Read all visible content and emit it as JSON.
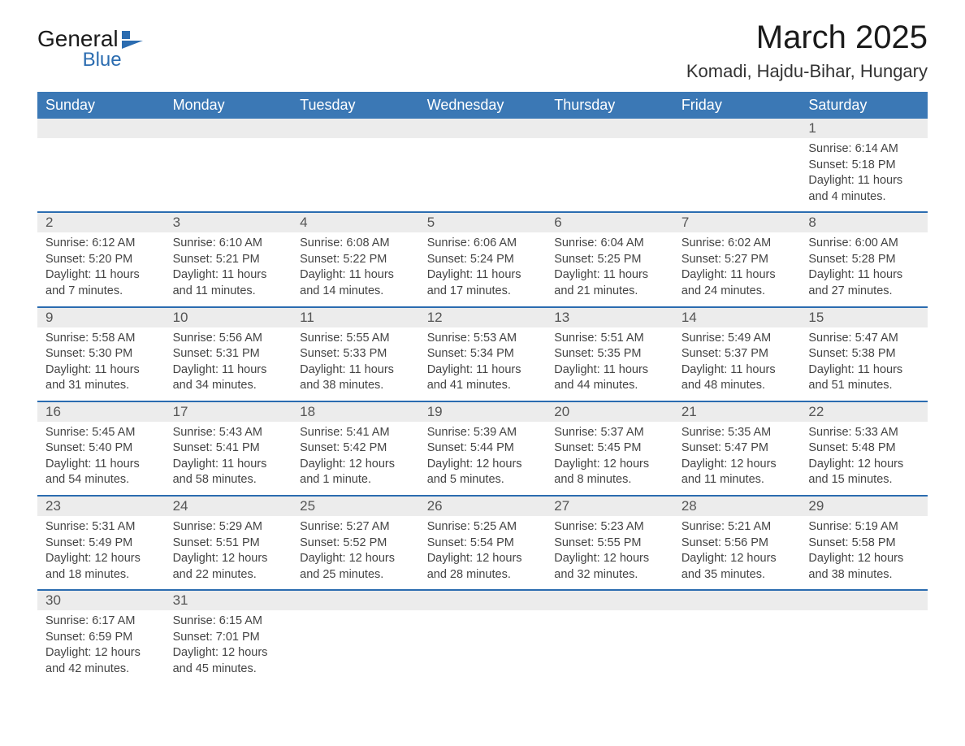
{
  "brand": {
    "name1": "General",
    "name2": "Blue"
  },
  "title": "March 2025",
  "location": "Komadi, Hajdu-Bihar, Hungary",
  "dayHeaders": [
    "Sunday",
    "Monday",
    "Tuesday",
    "Wednesday",
    "Thursday",
    "Friday",
    "Saturday"
  ],
  "colors": {
    "header_bg": "#3b78b5",
    "header_text": "#ffffff",
    "row_separator": "#2b6cb0",
    "daynum_bg": "#ececec",
    "text": "#444444",
    "title_text": "#1a1a1a"
  },
  "weeks": [
    [
      null,
      null,
      null,
      null,
      null,
      null,
      {
        "n": "1",
        "sr": "Sunrise: 6:14 AM",
        "ss": "Sunset: 5:18 PM",
        "dl": "Daylight: 11 hours and 4 minutes."
      }
    ],
    [
      {
        "n": "2",
        "sr": "Sunrise: 6:12 AM",
        "ss": "Sunset: 5:20 PM",
        "dl": "Daylight: 11 hours and 7 minutes."
      },
      {
        "n": "3",
        "sr": "Sunrise: 6:10 AM",
        "ss": "Sunset: 5:21 PM",
        "dl": "Daylight: 11 hours and 11 minutes."
      },
      {
        "n": "4",
        "sr": "Sunrise: 6:08 AM",
        "ss": "Sunset: 5:22 PM",
        "dl": "Daylight: 11 hours and 14 minutes."
      },
      {
        "n": "5",
        "sr": "Sunrise: 6:06 AM",
        "ss": "Sunset: 5:24 PM",
        "dl": "Daylight: 11 hours and 17 minutes."
      },
      {
        "n": "6",
        "sr": "Sunrise: 6:04 AM",
        "ss": "Sunset: 5:25 PM",
        "dl": "Daylight: 11 hours and 21 minutes."
      },
      {
        "n": "7",
        "sr": "Sunrise: 6:02 AM",
        "ss": "Sunset: 5:27 PM",
        "dl": "Daylight: 11 hours and 24 minutes."
      },
      {
        "n": "8",
        "sr": "Sunrise: 6:00 AM",
        "ss": "Sunset: 5:28 PM",
        "dl": "Daylight: 11 hours and 27 minutes."
      }
    ],
    [
      {
        "n": "9",
        "sr": "Sunrise: 5:58 AM",
        "ss": "Sunset: 5:30 PM",
        "dl": "Daylight: 11 hours and 31 minutes."
      },
      {
        "n": "10",
        "sr": "Sunrise: 5:56 AM",
        "ss": "Sunset: 5:31 PM",
        "dl": "Daylight: 11 hours and 34 minutes."
      },
      {
        "n": "11",
        "sr": "Sunrise: 5:55 AM",
        "ss": "Sunset: 5:33 PM",
        "dl": "Daylight: 11 hours and 38 minutes."
      },
      {
        "n": "12",
        "sr": "Sunrise: 5:53 AM",
        "ss": "Sunset: 5:34 PM",
        "dl": "Daylight: 11 hours and 41 minutes."
      },
      {
        "n": "13",
        "sr": "Sunrise: 5:51 AM",
        "ss": "Sunset: 5:35 PM",
        "dl": "Daylight: 11 hours and 44 minutes."
      },
      {
        "n": "14",
        "sr": "Sunrise: 5:49 AM",
        "ss": "Sunset: 5:37 PM",
        "dl": "Daylight: 11 hours and 48 minutes."
      },
      {
        "n": "15",
        "sr": "Sunrise: 5:47 AM",
        "ss": "Sunset: 5:38 PM",
        "dl": "Daylight: 11 hours and 51 minutes."
      }
    ],
    [
      {
        "n": "16",
        "sr": "Sunrise: 5:45 AM",
        "ss": "Sunset: 5:40 PM",
        "dl": "Daylight: 11 hours and 54 minutes."
      },
      {
        "n": "17",
        "sr": "Sunrise: 5:43 AM",
        "ss": "Sunset: 5:41 PM",
        "dl": "Daylight: 11 hours and 58 minutes."
      },
      {
        "n": "18",
        "sr": "Sunrise: 5:41 AM",
        "ss": "Sunset: 5:42 PM",
        "dl": "Daylight: 12 hours and 1 minute."
      },
      {
        "n": "19",
        "sr": "Sunrise: 5:39 AM",
        "ss": "Sunset: 5:44 PM",
        "dl": "Daylight: 12 hours and 5 minutes."
      },
      {
        "n": "20",
        "sr": "Sunrise: 5:37 AM",
        "ss": "Sunset: 5:45 PM",
        "dl": "Daylight: 12 hours and 8 minutes."
      },
      {
        "n": "21",
        "sr": "Sunrise: 5:35 AM",
        "ss": "Sunset: 5:47 PM",
        "dl": "Daylight: 12 hours and 11 minutes."
      },
      {
        "n": "22",
        "sr": "Sunrise: 5:33 AM",
        "ss": "Sunset: 5:48 PM",
        "dl": "Daylight: 12 hours and 15 minutes."
      }
    ],
    [
      {
        "n": "23",
        "sr": "Sunrise: 5:31 AM",
        "ss": "Sunset: 5:49 PM",
        "dl": "Daylight: 12 hours and 18 minutes."
      },
      {
        "n": "24",
        "sr": "Sunrise: 5:29 AM",
        "ss": "Sunset: 5:51 PM",
        "dl": "Daylight: 12 hours and 22 minutes."
      },
      {
        "n": "25",
        "sr": "Sunrise: 5:27 AM",
        "ss": "Sunset: 5:52 PM",
        "dl": "Daylight: 12 hours and 25 minutes."
      },
      {
        "n": "26",
        "sr": "Sunrise: 5:25 AM",
        "ss": "Sunset: 5:54 PM",
        "dl": "Daylight: 12 hours and 28 minutes."
      },
      {
        "n": "27",
        "sr": "Sunrise: 5:23 AM",
        "ss": "Sunset: 5:55 PM",
        "dl": "Daylight: 12 hours and 32 minutes."
      },
      {
        "n": "28",
        "sr": "Sunrise: 5:21 AM",
        "ss": "Sunset: 5:56 PM",
        "dl": "Daylight: 12 hours and 35 minutes."
      },
      {
        "n": "29",
        "sr": "Sunrise: 5:19 AM",
        "ss": "Sunset: 5:58 PM",
        "dl": "Daylight: 12 hours and 38 minutes."
      }
    ],
    [
      {
        "n": "30",
        "sr": "Sunrise: 6:17 AM",
        "ss": "Sunset: 6:59 PM",
        "dl": "Daylight: 12 hours and 42 minutes."
      },
      {
        "n": "31",
        "sr": "Sunrise: 6:15 AM",
        "ss": "Sunset: 7:01 PM",
        "dl": "Daylight: 12 hours and 45 minutes."
      },
      null,
      null,
      null,
      null,
      null
    ]
  ]
}
